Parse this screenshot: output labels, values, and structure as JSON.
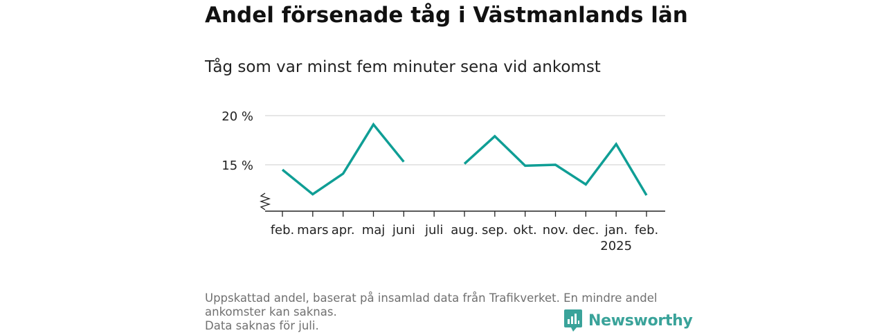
{
  "title": "Andel försenade tåg i Västmanlands län",
  "subtitle": "Tåg som var minst fem minuter sena vid ankomst",
  "notes": [
    "Uppskattad andel, baserat på insamlad data från Trafikverket. En mindre andel",
    "ankomster kan saknas.",
    "Data saknas för juli."
  ],
  "brand": {
    "name": "Newsworthy",
    "icon": "newsworthy-logo-icon",
    "color": "#3aa39a"
  },
  "chart_data": {
    "type": "line",
    "categories": [
      "feb.",
      "mars",
      "apr.",
      "maj",
      "juni",
      "juli",
      "aug.",
      "sep.",
      "okt.",
      "nov.",
      "dec.",
      "jan.",
      "feb."
    ],
    "category_sublabels": [
      "",
      "",
      "",
      "",
      "",
      "",
      "",
      "",
      "",
      "",
      "",
      "2025",
      ""
    ],
    "series": [
      {
        "values": [
          14.5,
          12.0,
          14.1,
          19.1,
          15.3,
          null,
          15.1,
          17.9,
          14.9,
          15.0,
          13.0,
          17.1,
          11.9
        ],
        "color": "#0f9e95"
      }
    ],
    "yticks": [
      15,
      20
    ],
    "ytick_labels": [
      "15 %",
      "20 %"
    ],
    "ylim": [
      10.2,
      21
    ],
    "y_axis_break": true,
    "grid": true,
    "missing": [
      "juli"
    ]
  }
}
